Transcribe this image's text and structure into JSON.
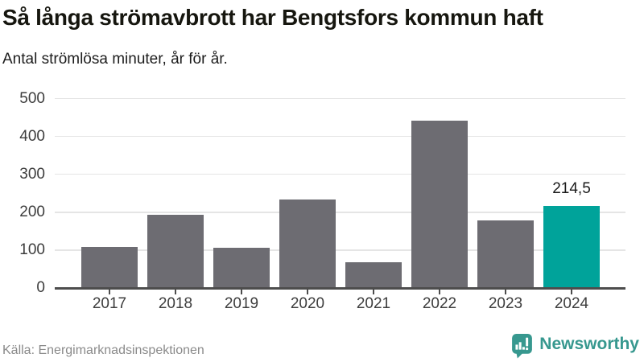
{
  "header": {
    "title": "Så långa strömavbrott har Bengtsfors kommun haft",
    "subtitle": "Antal strömlösa minuter, år för år."
  },
  "chart_data": {
    "type": "bar",
    "title": "Så långa strömavbrott har Bengtsfors kommun haft",
    "subtitle": "Antal strömlösa minuter, år för år.",
    "categories": [
      "2017",
      "2018",
      "2019",
      "2020",
      "2021",
      "2022",
      "2023",
      "2024"
    ],
    "values": [
      107,
      191,
      103,
      231,
      66,
      440,
      177,
      214.5
    ],
    "ylim": [
      0,
      500
    ],
    "yticks": [
      0,
      100,
      200,
      300,
      400,
      500
    ],
    "grid": "horizontal",
    "legend": "none",
    "highlight_index": 7,
    "annotation": {
      "text": "214,5",
      "bar_index": 7
    },
    "colors": {
      "bar": "#6d6c72",
      "highlight": "#00a39a",
      "grid": "#e5e5e5",
      "axis": "#4d4d4d"
    }
  },
  "footer": {
    "source": "Källa: Energimarknadsinspektionen",
    "brand": {
      "name": "Newsworthy",
      "color": "#37988f"
    }
  }
}
